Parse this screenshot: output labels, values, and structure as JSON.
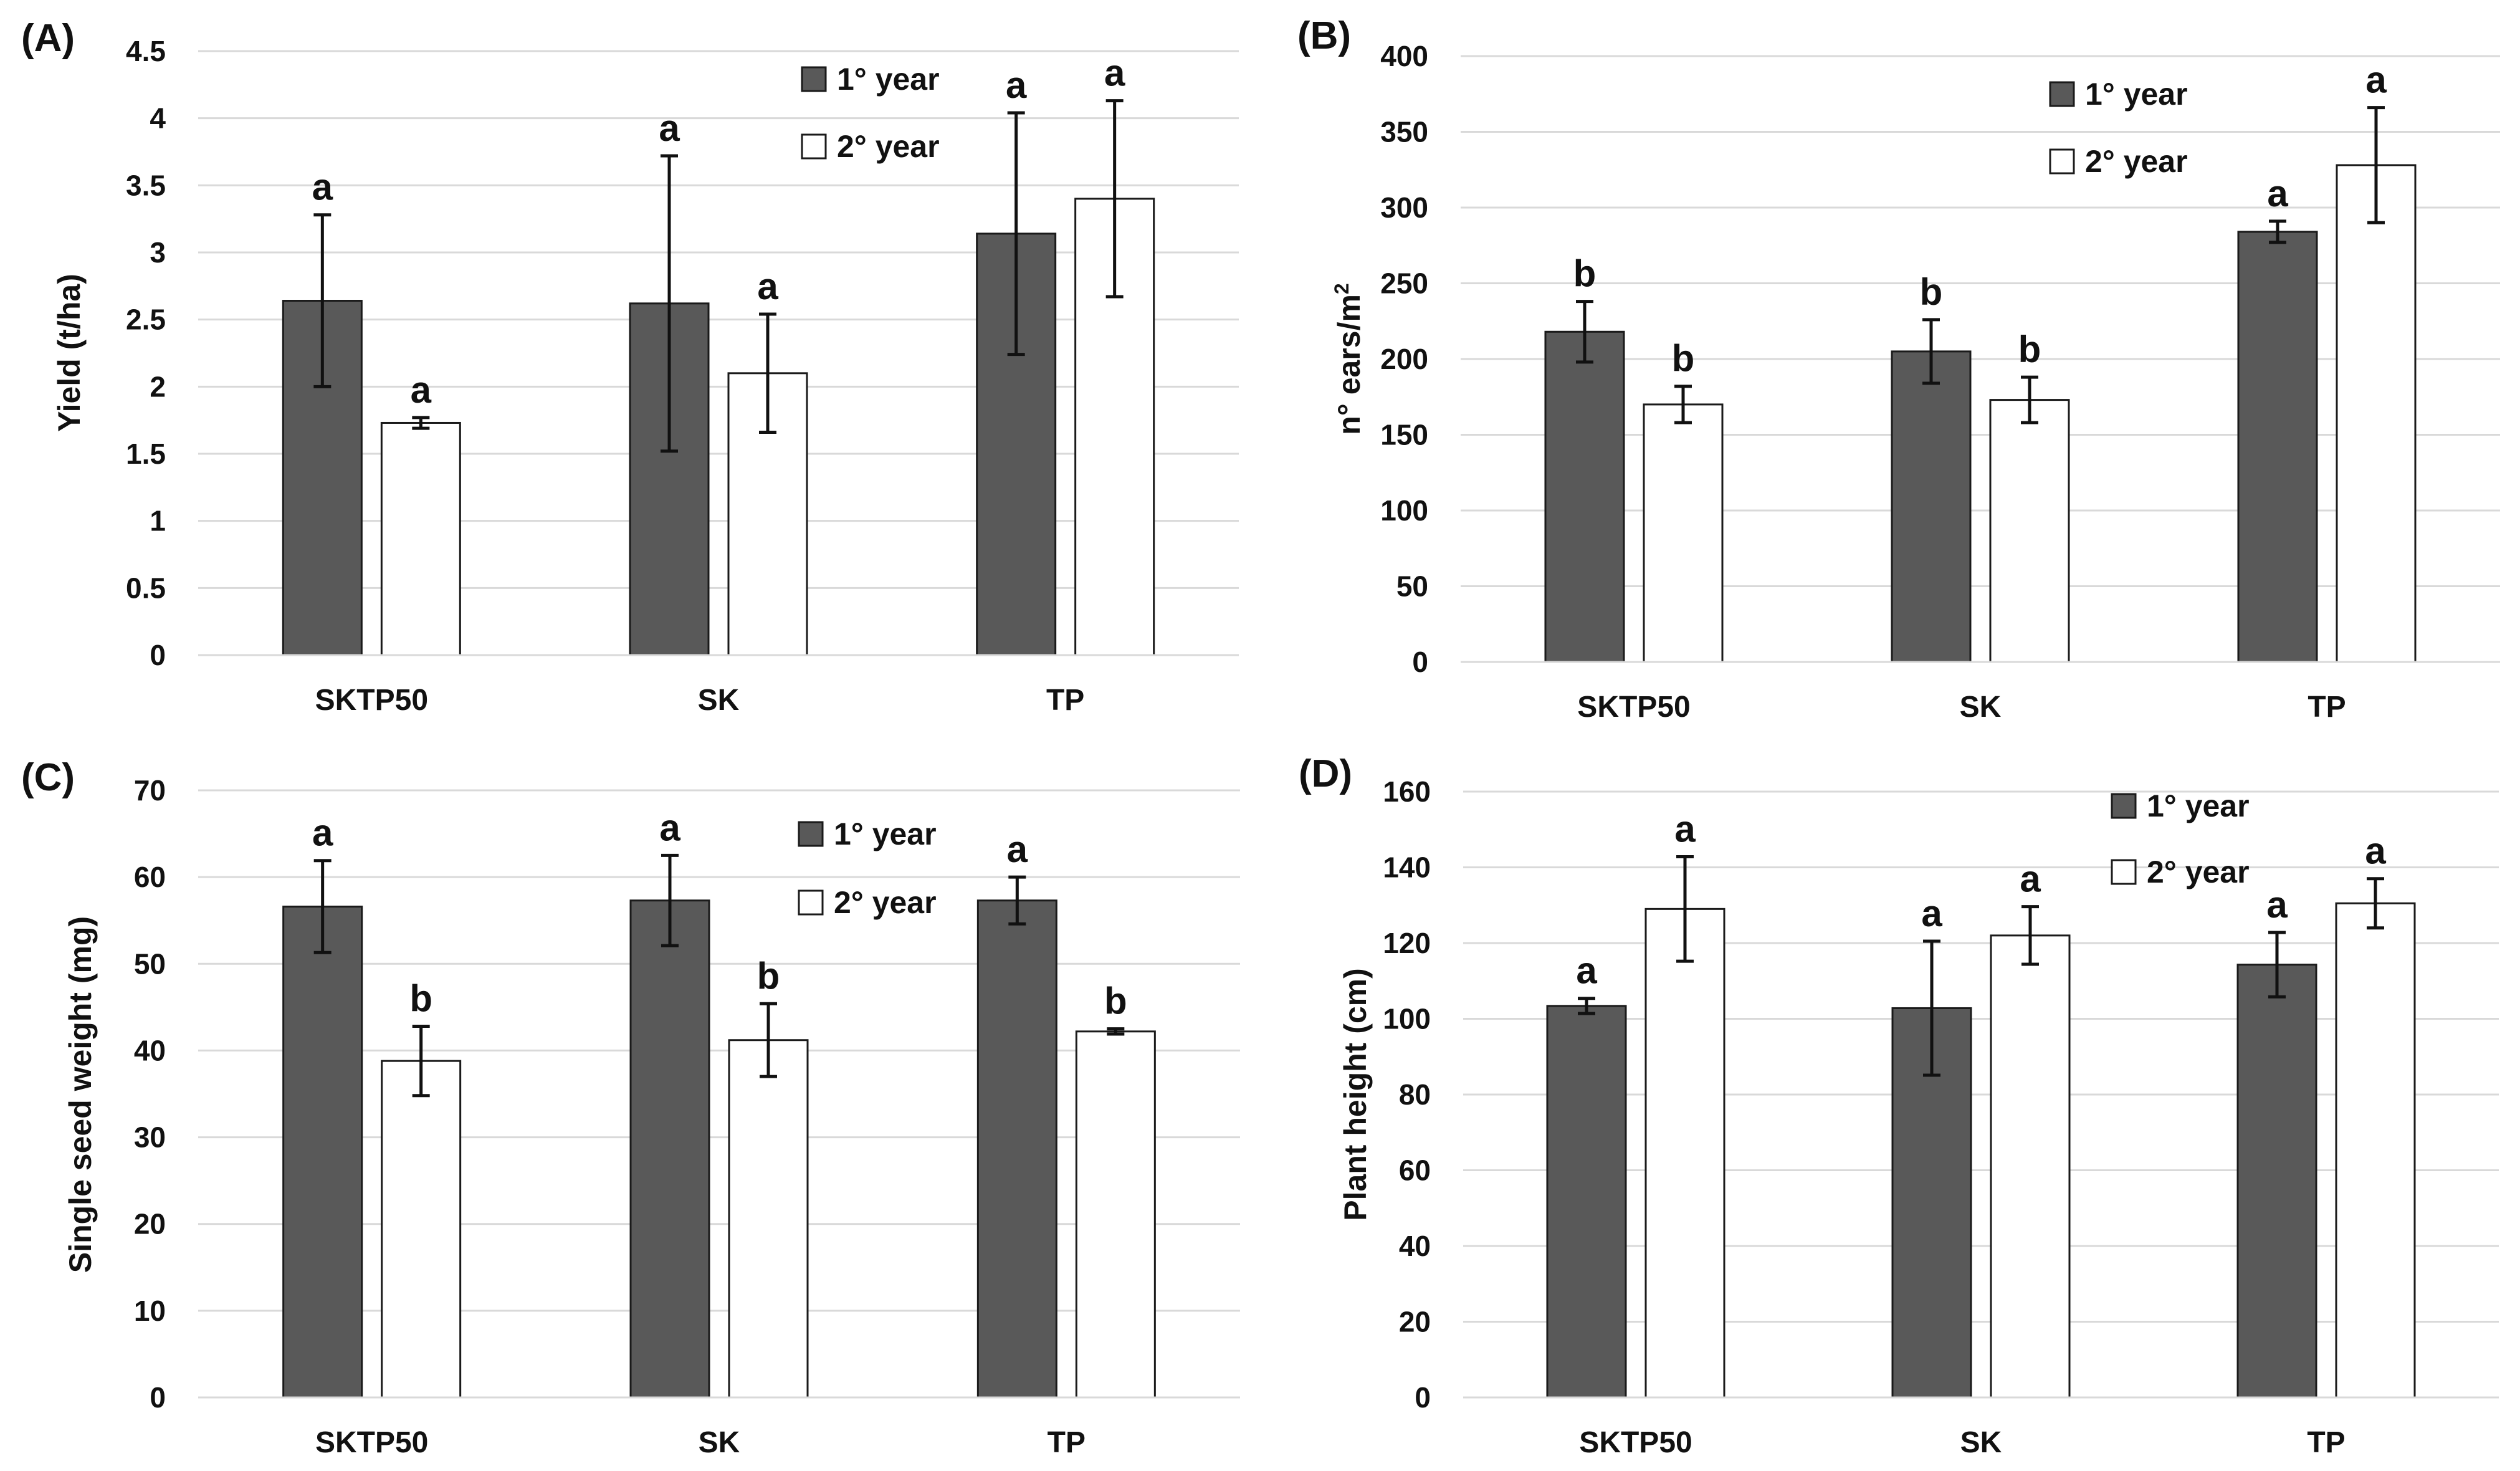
{
  "colors": {
    "year1": "#595959",
    "year2": "#ffffff",
    "bar_stroke": "#1a1a1a",
    "grid": "#d9d9d9",
    "text": "#111111"
  },
  "chart_data": [
    {
      "panel": "(A)",
      "type": "bar",
      "categories": [
        "SKTP50",
        "SK",
        "TP"
      ],
      "ylabel": "Yield (t/ha)",
      "ylabel_sup": "",
      "ylim": [
        0,
        4.5
      ],
      "yticks": [
        0,
        0.5,
        1,
        1.5,
        2,
        2.5,
        3,
        3.5,
        4,
        4.5
      ],
      "ytick_labels": [
        "0",
        "0.5",
        "1",
        "1.5",
        "2",
        "2.5",
        "3",
        "3.5",
        "4",
        "4.5"
      ],
      "grid": true,
      "legend": "top-right",
      "series": [
        {
          "name": "1° year",
          "values": [
            2.64,
            2.62,
            3.14
          ],
          "errors": [
            0.64,
            1.1,
            0.9
          ],
          "labels": [
            "a",
            "a",
            "a"
          ]
        },
        {
          "name": "2° year",
          "values": [
            1.73,
            2.1,
            3.4
          ],
          "errors": [
            0.04,
            0.44,
            0.73
          ],
          "labels": [
            "a",
            "a",
            "a"
          ]
        }
      ]
    },
    {
      "panel": "(B)",
      "type": "bar",
      "categories": [
        "SKTP50",
        "SK",
        "TP"
      ],
      "ylabel": "n° ears/m",
      "ylabel_sup": "2",
      "ylim": [
        0,
        400
      ],
      "yticks": [
        0,
        50,
        100,
        150,
        200,
        250,
        300,
        350,
        400
      ],
      "ytick_labels": [
        "0",
        "50",
        "100",
        "150",
        "200",
        "250",
        "300",
        "350",
        "400"
      ],
      "grid": true,
      "legend": "top-right",
      "series": [
        {
          "name": "1° year",
          "values": [
            218,
            205,
            284
          ],
          "errors": [
            20,
            21,
            7
          ],
          "labels": [
            "b",
            "b",
            "a"
          ]
        },
        {
          "name": "2° year",
          "values": [
            170,
            173,
            328
          ],
          "errors": [
            12,
            15,
            38
          ],
          "labels": [
            "b",
            "b",
            "a"
          ]
        }
      ]
    },
    {
      "panel": "(C)",
      "type": "bar",
      "categories": [
        "SKTP50",
        "SK",
        "TP"
      ],
      "ylabel": "Single seed weight (mg)",
      "ylabel_sup": "",
      "ylim": [
        0,
        70
      ],
      "yticks": [
        0,
        10,
        20,
        30,
        40,
        50,
        60,
        70
      ],
      "ytick_labels": [
        "0",
        "10",
        "20",
        "30",
        "40",
        "50",
        "60",
        "70"
      ],
      "grid": true,
      "legend": "top-right",
      "series": [
        {
          "name": "1° year",
          "values": [
            56.6,
            57.3,
            57.3
          ],
          "errors": [
            5.3,
            5.2,
            2.7
          ],
          "labels": [
            "a",
            "a",
            "a"
          ]
        },
        {
          "name": "2° year",
          "values": [
            38.8,
            41.2,
            42.2
          ],
          "errors": [
            4.0,
            4.2,
            0.3
          ],
          "labels": [
            "b",
            "b",
            "b"
          ]
        }
      ]
    },
    {
      "panel": "(D)",
      "type": "bar",
      "categories": [
        "SKTP50",
        "SK",
        "TP"
      ],
      "ylabel": "Plant height (cm)",
      "ylabel_sup": "",
      "ylim": [
        0,
        160
      ],
      "yticks": [
        0,
        20,
        40,
        60,
        80,
        100,
        120,
        140,
        160
      ],
      "ytick_labels": [
        "0",
        "20",
        "40",
        "60",
        "80",
        "100",
        "120",
        "140",
        "160"
      ],
      "grid": true,
      "legend": "top-right",
      "series": [
        {
          "name": "1° year",
          "values": [
            103.4,
            102.8,
            114.3
          ],
          "errors": [
            2.0,
            17.7,
            8.5
          ],
          "labels": [
            "a",
            "a",
            "a"
          ]
        },
        {
          "name": "2° year",
          "values": [
            129.0,
            122.0,
            130.5
          ],
          "errors": [
            13.8,
            7.6,
            6.5
          ],
          "labels": [
            "a",
            "a",
            "a"
          ]
        }
      ]
    }
  ]
}
